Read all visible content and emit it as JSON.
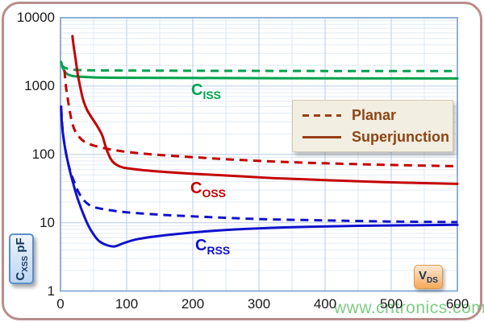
{
  "watermark": "www.cntronics.com",
  "legend": {
    "items": [
      {
        "label": "Planar",
        "line_style": "dashed"
      },
      {
        "label": "Superjunction",
        "line_style": "solid"
      }
    ],
    "text_color": "#8C4514",
    "line_color": "#9A3E12",
    "background": "#F2EEE1"
  },
  "curve_labels": {
    "ciss": {
      "main": "C",
      "sub": "ISS",
      "color": "#00A24E"
    },
    "coss": {
      "main": "C",
      "sub": "OSS",
      "color": "#C40000"
    },
    "crss": {
      "main": "C",
      "sub": "RSS",
      "color": "#1111CD"
    }
  },
  "axis_boxes": {
    "y": {
      "main": "C",
      "sub": "XSS",
      "unit": "pF"
    },
    "x": {
      "main": "V",
      "sub": "DS"
    }
  },
  "colors": {
    "frame_border": "#BA8C8C",
    "plot_border": "#8FB0D8",
    "grid_major": "#C6D7ED",
    "grid_minor": "#E3ECF8",
    "series_green": "#00A24E",
    "series_red": "#C40000",
    "series_blue": "#1111CD"
  },
  "chart_data": {
    "type": "line",
    "x_axis": {
      "label": "VDS",
      "min": 0,
      "max": 600,
      "ticks": [
        "0",
        "100",
        "200",
        "300",
        "400",
        "500",
        "600"
      ],
      "minor_step": 50,
      "scale": "linear"
    },
    "y_axis": {
      "label": "CXSS pF",
      "min": 1,
      "max": 10000,
      "ticks": [
        "1",
        "10",
        "100",
        "1000",
        "10000"
      ],
      "scale": "log"
    },
    "grid": true,
    "legend_position": "inside-right",
    "series": [
      {
        "name": "CISS Planar",
        "color": "#00A24E",
        "dash": true,
        "points": [
          [
            1,
            2050
          ],
          [
            4,
            1920
          ],
          [
            8,
            1830
          ],
          [
            15,
            1760
          ],
          [
            25,
            1720
          ],
          [
            45,
            1700
          ],
          [
            80,
            1690
          ],
          [
            150,
            1680
          ],
          [
            250,
            1670
          ],
          [
            400,
            1660
          ],
          [
            600,
            1655
          ]
        ]
      },
      {
        "name": "CISS Superjunction",
        "color": "#00A24E",
        "dash": false,
        "points": [
          [
            1,
            2250
          ],
          [
            4,
            1800
          ],
          [
            8,
            1560
          ],
          [
            14,
            1440
          ],
          [
            25,
            1380
          ],
          [
            50,
            1340
          ],
          [
            100,
            1320
          ],
          [
            200,
            1310
          ],
          [
            350,
            1300
          ],
          [
            600,
            1290
          ]
        ]
      },
      {
        "name": "COSS Planar",
        "color": "#C40000",
        "dash": true,
        "points": [
          [
            6,
            1700
          ],
          [
            8,
            1020
          ],
          [
            11,
            650
          ],
          [
            14,
            430
          ],
          [
            17,
            305
          ],
          [
            21,
            232
          ],
          [
            27,
            186
          ],
          [
            35,
            156
          ],
          [
            45,
            140
          ],
          [
            60,
            127
          ],
          [
            80,
            116
          ],
          [
            110,
            106
          ],
          [
            150,
            98
          ],
          [
            200,
            91
          ],
          [
            260,
            84
          ],
          [
            330,
            78
          ],
          [
            400,
            74
          ],
          [
            500,
            70
          ],
          [
            600,
            67
          ]
        ]
      },
      {
        "name": "COSS Superjunction",
        "color": "#C40000",
        "dash": false,
        "points": [
          [
            18,
            5400
          ],
          [
            20,
            3800
          ],
          [
            23,
            2400
          ],
          [
            26,
            1500
          ],
          [
            30,
            950
          ],
          [
            34,
            640
          ],
          [
            40,
            450
          ],
          [
            48,
            335
          ],
          [
            56,
            255
          ],
          [
            63,
            190
          ],
          [
            68,
            132
          ],
          [
            73,
            98
          ],
          [
            78,
            80
          ],
          [
            85,
            70
          ],
          [
            95,
            64
          ],
          [
            110,
            61
          ],
          [
            130,
            58
          ],
          [
            160,
            55
          ],
          [
            200,
            52
          ],
          [
            250,
            49
          ],
          [
            320,
            45
          ],
          [
            400,
            42
          ],
          [
            500,
            39
          ],
          [
            600,
            37
          ]
        ]
      },
      {
        "name": "CRSS Planar",
        "color": "#1111CD",
        "dash": true,
        "points": [
          [
            1,
            470
          ],
          [
            3,
            240
          ],
          [
            6,
            142
          ],
          [
            10,
            86
          ],
          [
            15,
            56
          ],
          [
            20,
            41
          ],
          [
            28,
            27
          ],
          [
            38,
            20
          ],
          [
            50,
            17
          ],
          [
            70,
            15.5
          ],
          [
            100,
            14.2
          ],
          [
            150,
            13.1
          ],
          [
            215,
            12.2
          ],
          [
            300,
            11.3
          ],
          [
            400,
            10.8
          ],
          [
            500,
            10.4
          ],
          [
            600,
            10.2
          ]
        ]
      },
      {
        "name": "CRSS Superjunction",
        "color": "#1111CD",
        "dash": false,
        "points": [
          [
            1,
            500
          ],
          [
            2,
            300
          ],
          [
            4,
            190
          ],
          [
            7,
            122
          ],
          [
            10,
            87
          ],
          [
            14,
            58
          ],
          [
            19,
            38
          ],
          [
            25,
            24
          ],
          [
            32,
            15.5
          ],
          [
            40,
            10
          ],
          [
            48,
            7.2
          ],
          [
            58,
            5.4
          ],
          [
            70,
            4.7
          ],
          [
            82,
            4.5
          ],
          [
            95,
            5.0
          ],
          [
            115,
            5.7
          ],
          [
            155,
            6.5
          ],
          [
            215,
            7.4
          ],
          [
            280,
            8.1
          ],
          [
            350,
            8.6
          ],
          [
            450,
            9.0
          ],
          [
            600,
            9.3
          ]
        ]
      }
    ]
  }
}
